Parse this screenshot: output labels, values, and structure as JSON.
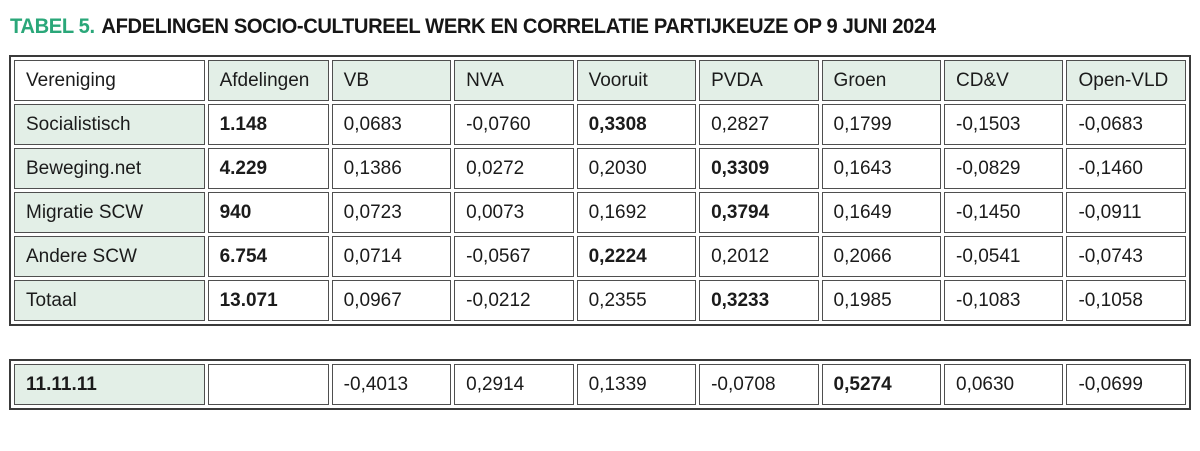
{
  "title": {
    "label": "TABEL 5.",
    "text": "AFDELINGEN SOCIO-CULTUREEL WERK EN CORRELATIE PARTIJKEUZE OP 9 JUNI 2024"
  },
  "colors": {
    "accent_green": "#2aa779",
    "cell_green": "#e3efe7",
    "border_gray": "#4f4f4f"
  },
  "main_table": {
    "columns": [
      "Vereniging",
      "Afdelingen",
      "VB",
      "NVA",
      "Vooruit",
      "PVDA",
      "Groen",
      "CD&V",
      "Open-VLD"
    ],
    "rows": [
      {
        "vereniging": "Socialistisch",
        "afdelingen": "1.148",
        "values": [
          "0,0683",
          "-0,0760",
          "0,3308",
          "0,2827",
          "0,1799",
          "-0,1503",
          "-0,0683"
        ],
        "bold_index": 2
      },
      {
        "vereniging": "Beweging.net",
        "afdelingen": "4.229",
        "values": [
          "0,1386",
          "0,0272",
          "0,2030",
          "0,3309",
          "0,1643",
          "-0,0829",
          "-0,1460"
        ],
        "bold_index": 3
      },
      {
        "vereniging": "Migratie SCW",
        "afdelingen": "940",
        "values": [
          "0,0723",
          "0,0073",
          "0,1692",
          "0,3794",
          "0,1649",
          "-0,1450",
          "-0,0911"
        ],
        "bold_index": 3
      },
      {
        "vereniging": "Andere SCW",
        "afdelingen": "6.754",
        "values": [
          "0,0714",
          "-0,0567",
          "0,2224",
          "0,2012",
          "0,2066",
          "-0,0541",
          "-0,0743"
        ],
        "bold_index": 2
      },
      {
        "vereniging": "Totaal",
        "afdelingen": "13.071",
        "values": [
          "0,0967",
          "-0,0212",
          "0,2355",
          "0,3233",
          "0,1985",
          "-0,1083",
          "-0,1058"
        ],
        "bold_index": 3
      }
    ]
  },
  "footer_table": {
    "rows": [
      {
        "vereniging": "11.11.11",
        "afdelingen": "",
        "values": [
          "-0,4013",
          "0,2914",
          "0,1339",
          "-0,0708",
          "0,5274",
          "0,0630",
          "-0,0699"
        ],
        "bold_index": 4
      }
    ]
  }
}
